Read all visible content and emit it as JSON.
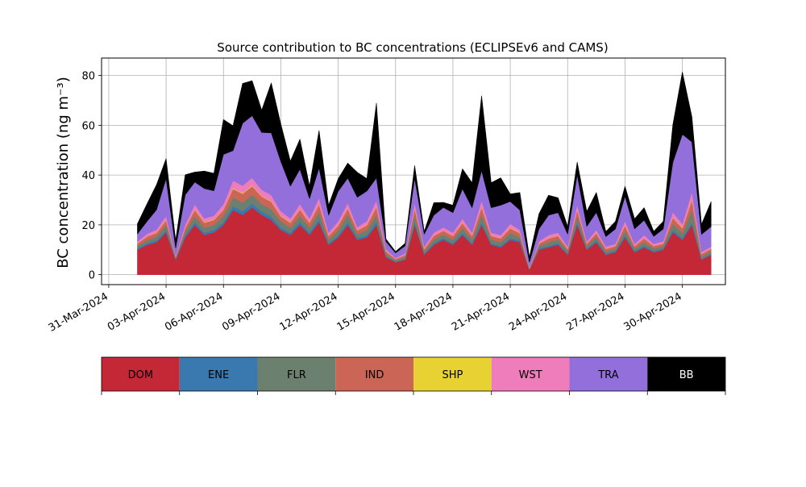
{
  "chart_data": {
    "type": "area",
    "stacked": true,
    "title": "Source contribution to BC concentrations (ECLIPSEv6 and CAMS)",
    "ylabel": "BC concentration (ng m⁻³)",
    "xlabel": "",
    "ylim": [
      -4,
      87
    ],
    "yticks": [
      "0",
      "20",
      "40",
      "60",
      "80"
    ],
    "x_tick_labels": [
      "31-Mar-2024",
      "03-Apr-2024",
      "06-Apr-2024",
      "09-Apr-2024",
      "12-Apr-2024",
      "15-Apr-2024",
      "18-Apr-2024",
      "21-Apr-2024",
      "24-Apr-2024",
      "27-Apr-2024",
      "30-Apr-2024"
    ],
    "grid": true,
    "legend_placement": "color bar below the plot",
    "x": [
      "2024-04-01 12:00",
      "2024-04-02 00:00",
      "2024-04-02 12:00",
      "2024-04-03 00:00",
      "2024-04-03 12:00",
      "2024-04-04 00:00",
      "2024-04-04 12:00",
      "2024-04-05 00:00",
      "2024-04-05 12:00",
      "2024-04-06 00:00",
      "2024-04-06 12:00",
      "2024-04-07 00:00",
      "2024-04-07 12:00",
      "2024-04-08 00:00",
      "2024-04-08 12:00",
      "2024-04-09 00:00",
      "2024-04-09 12:00",
      "2024-04-10 00:00",
      "2024-04-10 12:00",
      "2024-04-11 00:00",
      "2024-04-11 12:00",
      "2024-04-12 00:00",
      "2024-04-12 12:00",
      "2024-04-13 00:00",
      "2024-04-13 12:00",
      "2024-04-14 00:00",
      "2024-04-14 12:00",
      "2024-04-15 00:00",
      "2024-04-15 12:00",
      "2024-04-16 00:00",
      "2024-04-16 12:00",
      "2024-04-17 00:00",
      "2024-04-17 12:00",
      "2024-04-18 00:00",
      "2024-04-18 12:00",
      "2024-04-19 00:00",
      "2024-04-19 12:00",
      "2024-04-20 00:00",
      "2024-04-20 12:00",
      "2024-04-21 00:00",
      "2024-04-21 12:00",
      "2024-04-22 00:00",
      "2024-04-22 12:00",
      "2024-04-23 00:00",
      "2024-04-23 12:00",
      "2024-04-24 00:00",
      "2024-04-24 12:00",
      "2024-04-25 00:00",
      "2024-04-25 12:00",
      "2024-04-26 00:00",
      "2024-04-26 12:00",
      "2024-04-27 00:00",
      "2024-04-27 12:00",
      "2024-04-28 00:00",
      "2024-04-28 12:00",
      "2024-04-29 00:00",
      "2024-04-29 12:00",
      "2024-04-30 00:00",
      "2024-04-30 12:00",
      "2024-05-01 00:00",
      "2024-05-01 12:00"
    ],
    "series": [
      {
        "name": "DOM",
        "color": "#c42836",
        "values": [
          10,
          12,
          13,
          17,
          6,
          15,
          20,
          16,
          17,
          20,
          26,
          24,
          27,
          24,
          22,
          18,
          16,
          20,
          16,
          21,
          12,
          15,
          20,
          14,
          15,
          20,
          7,
          5,
          6,
          20,
          8,
          12,
          14,
          12,
          16,
          12,
          20,
          12,
          11,
          14,
          13,
          2,
          10,
          11,
          12,
          8,
          20,
          10,
          13,
          8,
          9,
          15,
          9,
          11,
          9,
          10,
          17,
          14,
          20,
          6,
          8
        ]
      },
      {
        "name": "ENE",
        "color": "#3a78b0",
        "values": [
          0.5,
          0.6,
          0.8,
          0.9,
          0.3,
          0.8,
          1.0,
          0.9,
          1.0,
          1.1,
          1.5,
          1.5,
          1.6,
          1.4,
          1.3,
          1.0,
          0.9,
          1.2,
          0.9,
          1.2,
          0.6,
          0.8,
          1.1,
          0.8,
          0.9,
          1.2,
          0.4,
          0.3,
          0.3,
          1.1,
          0.4,
          0.6,
          0.7,
          0.6,
          0.8,
          0.6,
          1.1,
          0.6,
          0.6,
          0.7,
          0.7,
          0.1,
          0.5,
          0.6,
          0.6,
          0.4,
          1.0,
          0.5,
          0.7,
          0.4,
          0.5,
          0.8,
          0.5,
          0.6,
          0.5,
          0.5,
          0.9,
          0.7,
          1.0,
          0.3,
          0.4
        ]
      },
      {
        "name": "FLR",
        "color": "#6c8070",
        "values": [
          1.0,
          1.2,
          1.5,
          2.0,
          0.5,
          1.5,
          2.5,
          2.0,
          2.0,
          2.5,
          3.5,
          3.5,
          3.5,
          3.0,
          3.0,
          2.5,
          2.0,
          2.5,
          2.0,
          3.0,
          1.5,
          2.0,
          3.0,
          1.5,
          2.0,
          3.0,
          1.0,
          0.5,
          0.8,
          3.0,
          1.0,
          1.5,
          1.5,
          1.5,
          2.0,
          1.5,
          3.0,
          1.5,
          1.5,
          2.0,
          1.5,
          0.3,
          1.0,
          1.5,
          1.5,
          1.0,
          2.5,
          1.0,
          1.5,
          1.0,
          1.0,
          2.0,
          1.0,
          1.5,
          1.0,
          1.0,
          2.5,
          2.0,
          5.0,
          1.0,
          1.0
        ]
      },
      {
        "name": "IND",
        "color": "#cb6555",
        "values": [
          1.0,
          1.5,
          1.5,
          2.0,
          0.5,
          1.5,
          2.5,
          2.0,
          2.0,
          2.5,
          3.5,
          3.5,
          3.5,
          3.0,
          3.0,
          2.0,
          2.0,
          2.5,
          2.0,
          3.0,
          1.5,
          2.0,
          2.5,
          1.5,
          2.0,
          3.0,
          1.0,
          0.5,
          0.8,
          2.5,
          1.0,
          1.5,
          1.5,
          1.5,
          2.0,
          1.5,
          3.0,
          1.5,
          1.5,
          2.0,
          1.5,
          0.3,
          1.0,
          1.5,
          1.5,
          1.0,
          2.5,
          1.0,
          1.5,
          1.0,
          1.0,
          2.0,
          1.0,
          1.5,
          1.0,
          1.0,
          2.5,
          2.0,
          4.0,
          1.0,
          1.0
        ]
      },
      {
        "name": "SHP",
        "color": "#e7d133",
        "values": [
          0.1,
          0.1,
          0.1,
          0.2,
          0.05,
          0.1,
          0.2,
          0.2,
          0.2,
          0.2,
          0.3,
          0.3,
          0.3,
          0.2,
          0.2,
          0.2,
          0.2,
          0.2,
          0.2,
          0.2,
          0.1,
          0.2,
          0.2,
          0.1,
          0.2,
          0.2,
          0.1,
          0.05,
          0.1,
          0.2,
          0.1,
          0.1,
          0.1,
          0.1,
          0.2,
          0.1,
          0.2,
          0.1,
          0.1,
          0.2,
          0.1,
          0.05,
          0.1,
          0.1,
          0.1,
          0.1,
          0.2,
          0.1,
          0.1,
          0.1,
          0.1,
          0.2,
          0.1,
          0.1,
          0.1,
          0.1,
          0.2,
          0.2,
          0.3,
          0.1,
          0.1
        ]
      },
      {
        "name": "WST",
        "color": "#f07dbb",
        "values": [
          0.8,
          1.0,
          1.2,
          1.5,
          0.4,
          1.2,
          2.0,
          1.5,
          1.5,
          2.0,
          3.0,
          3.0,
          3.0,
          2.5,
          2.5,
          1.8,
          1.5,
          2.0,
          1.5,
          2.5,
          1.2,
          1.5,
          2.0,
          1.2,
          1.5,
          2.5,
          0.8,
          0.4,
          0.6,
          2.0,
          0.8,
          1.2,
          1.2,
          1.2,
          1.5,
          1.2,
          2.5,
          1.2,
          1.2,
          1.5,
          1.2,
          0.3,
          0.8,
          1.2,
          1.2,
          0.8,
          2.0,
          0.8,
          1.2,
          0.8,
          0.8,
          1.5,
          0.8,
          1.2,
          0.8,
          0.8,
          2.0,
          1.5,
          3.0,
          0.8,
          0.8
        ]
      },
      {
        "name": "TRA",
        "color": "#936fdc",
        "values": [
          3,
          5,
          8,
          15,
          3,
          12,
          9,
          12,
          10,
          20,
          12,
          25,
          25,
          23,
          25,
          20,
          13,
          14,
          8,
          12,
          7,
          12,
          10,
          12,
          12,
          9,
          3,
          2,
          3,
          10,
          5,
          7,
          8,
          8,
          12,
          10,
          12,
          10,
          12,
          9,
          8,
          2,
          5,
          8,
          8,
          5,
          12,
          6,
          7,
          4,
          6,
          10,
          6,
          6,
          3,
          5,
          20,
          36,
          20,
          7,
          8
        ]
      },
      {
        "name": "BB",
        "color": "#000000",
        "values": [
          4,
          7,
          10,
          8,
          3,
          8,
          4,
          7,
          7,
          14,
          10,
          16,
          14,
          9,
          20,
          15,
          10,
          12,
          5,
          15,
          4,
          5,
          6,
          10,
          5,
          30,
          1,
          0.5,
          1,
          5,
          1,
          5,
          2,
          3,
          8,
          10,
          30,
          10,
          11,
          3,
          7,
          2,
          6,
          8,
          6,
          3,
          5,
          6,
          8,
          2,
          3,
          4,
          4,
          5,
          2,
          3,
          15,
          25,
          10,
          4,
          10
        ]
      }
    ]
  }
}
